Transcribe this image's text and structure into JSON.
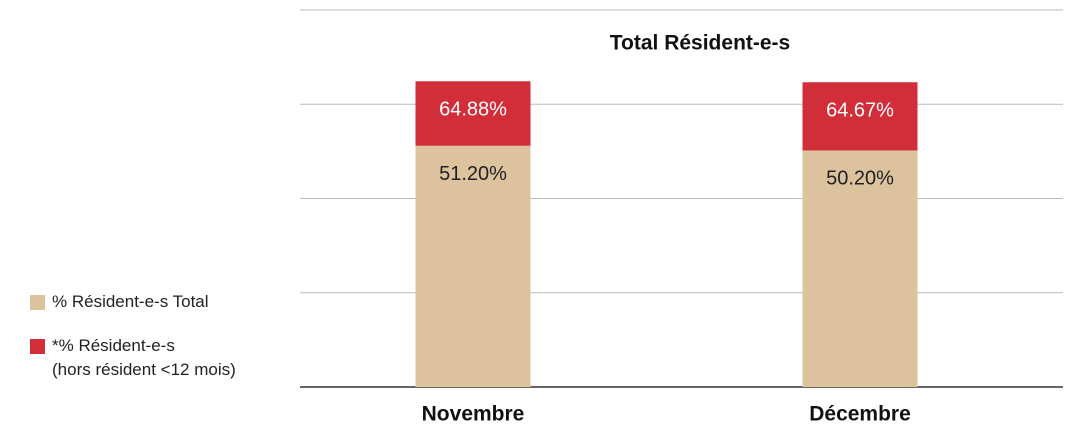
{
  "chart_data": {
    "type": "bar",
    "barmode": "overlay",
    "title": "Total Résident-e-s",
    "categories": [
      "Novembre",
      "Décembre"
    ],
    "series": [
      {
        "name": "% Résident-e-s Total",
        "color": "#dcc39e",
        "values": [
          51.2,
          50.2
        ],
        "value_labels": [
          "51.20%",
          "50.20%"
        ]
      },
      {
        "name": "*% Résident-e-s\n(hors résident <12 mois)",
        "color": "#d22e3a",
        "values": [
          64.88,
          64.67
        ],
        "value_labels": [
          "64.88%",
          "64.67%"
        ]
      }
    ],
    "ylim": [
      0,
      80
    ],
    "yticks": [
      0,
      20,
      40,
      60,
      80
    ],
    "grid": true,
    "legend": "left"
  }
}
